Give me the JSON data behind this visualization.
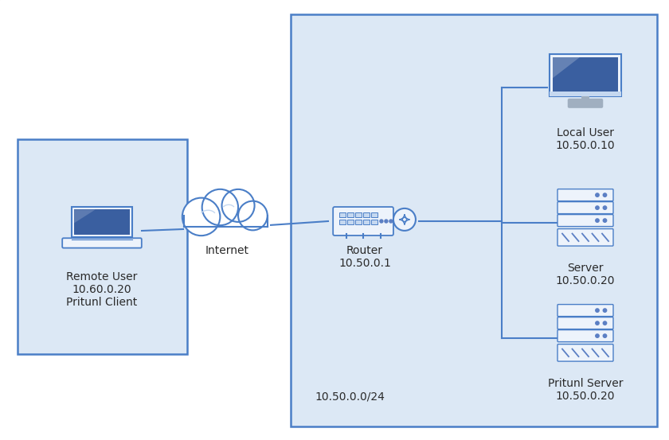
{
  "bg_checker_light": "#f0f0f0",
  "bg_checker_dark": "#d8d8d8",
  "inner_box_color": "#dce8f5",
  "inner_box_border": "#4a7ec7",
  "remote_box_color": "#dce8f5",
  "remote_box_border": "#4a7ec7",
  "line_color": "#4a7ec7",
  "text_color": "#2a2a2a",
  "icon_blue_dark": "#3a5fa0",
  "icon_blue_mid": "#5b7fc4",
  "icon_blue_light": "#c5d8f0",
  "icon_gray": "#a0afc0",
  "icon_white": "#edf3fb",
  "icon_border": "#4a7ec7",
  "remote_user_label": "Remote User\n10.60.0.20\nPritunl Client",
  "internet_label": "Internet",
  "router_label": "Router\n10.50.0.1",
  "local_user_label": "Local User\n10.50.0.10",
  "server_label": "Server\n10.50.0.20",
  "pritunl_server_label": "Pritunl Server\n10.50.0.20",
  "subnet_label": "10.50.0.0/24",
  "font_size": 9
}
